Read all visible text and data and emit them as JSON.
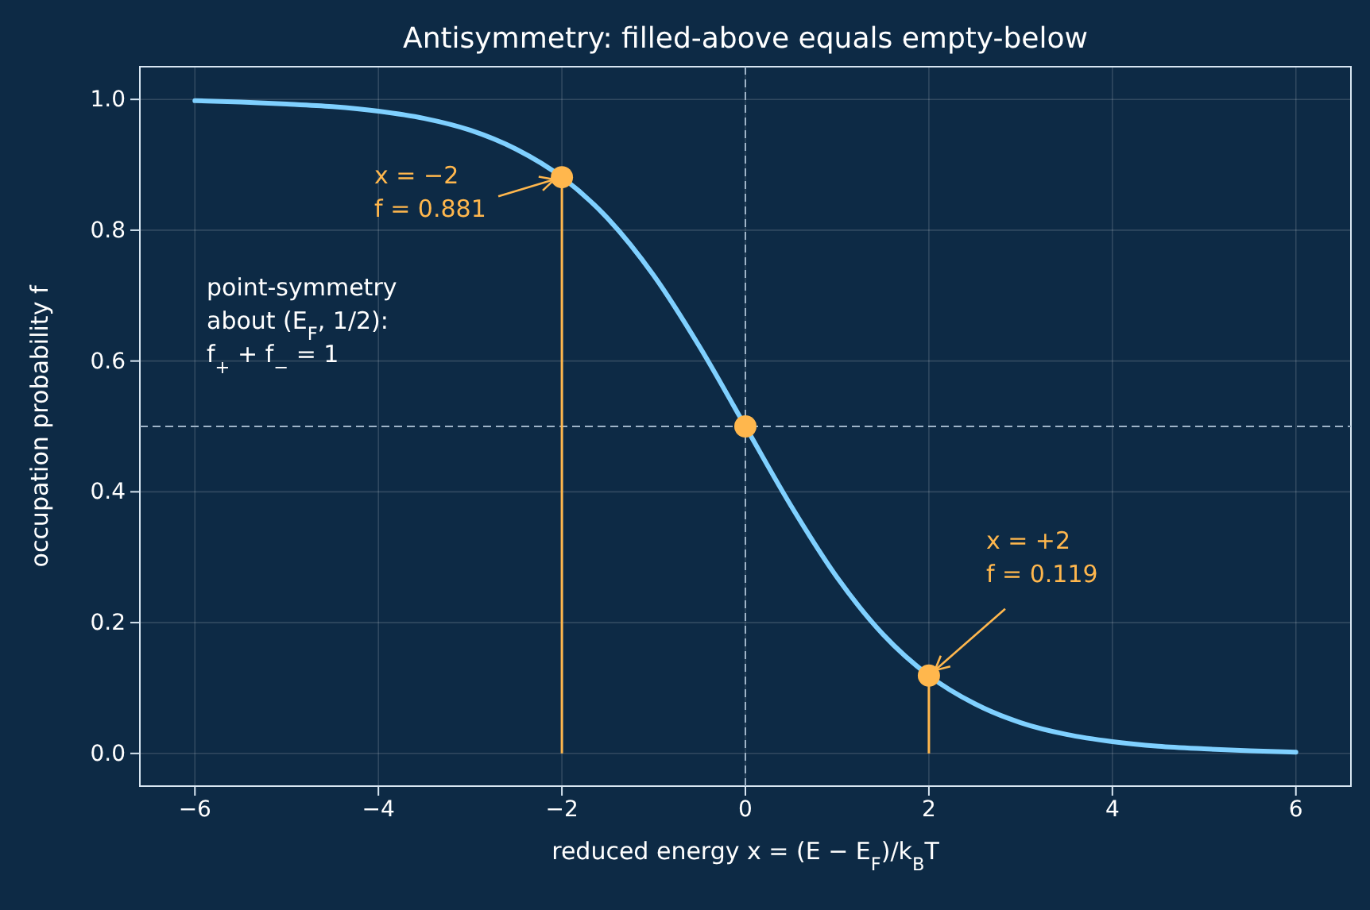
{
  "chart_data": {
    "type": "line",
    "title": "Antisymmetry: filled-above equals empty-below",
    "xlabel": "reduced energy  x = (E − E$_{F}$)/k$_{B}$T",
    "ylabel": "occupation probability  f",
    "x": [
      -6,
      -5.5,
      -5,
      -4.5,
      -4,
      -3.5,
      -3,
      -2.5,
      -2,
      -1.5,
      -1,
      -0.5,
      0,
      0.5,
      1,
      1.5,
      2,
      2.5,
      3,
      3.5,
      4,
      4.5,
      5,
      5.5,
      6
    ],
    "series": [
      {
        "color": "#7fd0ff",
        "marker": "none",
        "line_style": "solid",
        "values": [
          0.998,
          0.996,
          0.993,
          0.989,
          0.982,
          0.971,
          0.953,
          0.924,
          0.881,
          0.818,
          0.731,
          0.622,
          0.5,
          0.378,
          0.269,
          0.182,
          0.119,
          0.076,
          0.047,
          0.029,
          0.018,
          0.011,
          0.007,
          0.004,
          0.002
        ]
      },
      {
        "type": "lollipop",
        "color": "#ffb74d",
        "x": [
          -2,
          2
        ],
        "values": [
          0.881,
          0.119
        ]
      },
      {
        "type": "scatter",
        "color": "#ffb74d",
        "x": [
          0
        ],
        "values": [
          0.5
        ]
      }
    ],
    "xlim": [
      -6.6,
      6.6
    ],
    "ylim": [
      -0.05,
      1.05
    ],
    "xticks": [
      {
        "value": -6,
        "label": "−6"
      },
      {
        "value": -4,
        "label": "−4"
      },
      {
        "value": -2,
        "label": "−2"
      },
      0,
      2,
      4,
      6
    ],
    "yticks": [
      {
        "value": 0,
        "label": "0.0"
      },
      {
        "value": 0.2,
        "label": "0.2"
      },
      {
        "value": 0.4,
        "label": "0.4"
      },
      {
        "value": 0.6,
        "label": "0.6"
      },
      {
        "value": 0.8,
        "label": "0.8"
      },
      {
        "value": 1,
        "label": "1.0"
      }
    ],
    "grid": true,
    "ref_lines": [
      {
        "axis": "x",
        "value": 0,
        "color": "#9fb4c8",
        "line_style": "dashed"
      },
      {
        "axis": "y",
        "value": 0.5,
        "color": "#9fb4c8",
        "line_style": "dashed"
      }
    ],
    "annotations": [
      {
        "text": "x = −2\nf = 0.881",
        "x": -2,
        "y": 0.881
      },
      {
        "text": "x = +2\nf = 0.119",
        "x": 2,
        "y": 0.119
      },
      "point-symmetry\nabout (E$_{F}$, 1/2):\nf$_{+}$ + f$_{−}$ = 1"
    ]
  }
}
